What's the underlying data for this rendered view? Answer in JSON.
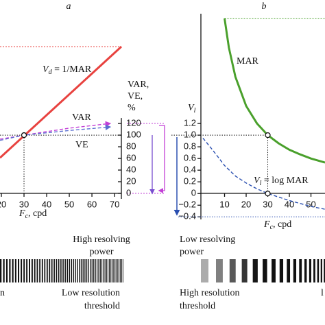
{
  "chart_data": [
    {
      "type": "line",
      "title": "a",
      "xlabel": {
        "var": "F",
        "sub": "c",
        "rest": ", cpd"
      },
      "ylabel": [
        "VAR,",
        "VE,",
        "%"
      ],
      "xlim": [
        19.4,
        73
      ],
      "ylim": [
        0,
        252
      ],
      "xticks": [
        20,
        30,
        40,
        50,
        60,
        70
      ],
      "yticks": [
        0,
        20,
        40,
        60,
        80,
        100,
        120
      ],
      "series": [
        {
          "name": "1/MAR",
          "label": {
            "var": "V",
            "sub": "d",
            "rest": " = 1/MAR"
          },
          "color": "#e8423f",
          "x": [
            19.4,
            73
          ],
          "values": [
            61,
            252
          ]
        },
        {
          "name": "VAR",
          "color": "#c23fd6",
          "x": [
            19.4,
            30,
            50,
            68
          ],
          "values": [
            93,
            100,
            112,
            120
          ]
        },
        {
          "name": "VE",
          "color": "#5a6fd0",
          "x": [
            19.4,
            30,
            50,
            68
          ],
          "values": [
            91,
            100,
            108,
            114
          ]
        }
      ]
    },
    {
      "type": "line",
      "title": "b",
      "xlabel": {
        "var": "F",
        "sub": "c",
        "rest": ", cpd"
      },
      "ylabel": {
        "var": "V",
        "sub": "l"
      },
      "xlim": [
        0,
        56.5
      ],
      "ylim": [
        -0.42,
        3.08
      ],
      "xticks": [
        10,
        20,
        30,
        40,
        50
      ],
      "yticks": [
        {
          "value": -0.4,
          "label": "−0.4"
        },
        {
          "value": -0.2,
          "label": "−0.2"
        },
        0,
        0.2,
        0.4,
        0.6,
        0.8,
        {
          "value": 1,
          "label": "1.0"
        },
        1.2
      ],
      "series": [
        {
          "name": "MAR",
          "color": "#4aa02c",
          "x": [
            10,
            12,
            15,
            20,
            25,
            30,
            35,
            40,
            45,
            50,
            56.5
          ],
          "values": [
            3,
            2.5,
            2,
            1.5,
            1.2,
            1,
            0.86,
            0.75,
            0.67,
            0.6,
            0.53
          ]
        },
        {
          "name": "log MAR",
          "label": {
            "var": "V",
            "sub": "l",
            "rest": " = log MAR"
          },
          "color": "#2a4fb0",
          "x": [
            0,
            5,
            10,
            15,
            20,
            25,
            30,
            40,
            50,
            56.5
          ],
          "values": [
            0.95,
            0.72,
            0.48,
            0.3,
            0.18,
            0.08,
            0,
            -0.12,
            -0.22,
            -0.27
          ]
        }
      ]
    }
  ],
  "captions": {
    "high_power": [
      "High resolving",
      "power"
    ],
    "low_power": [
      "Low resolving",
      "power"
    ],
    "left_end": "n",
    "low_threshold": [
      "Low resolution",
      "threshold"
    ],
    "high_threshold": [
      "High resolution",
      "threshold"
    ],
    "right_end": "l"
  }
}
